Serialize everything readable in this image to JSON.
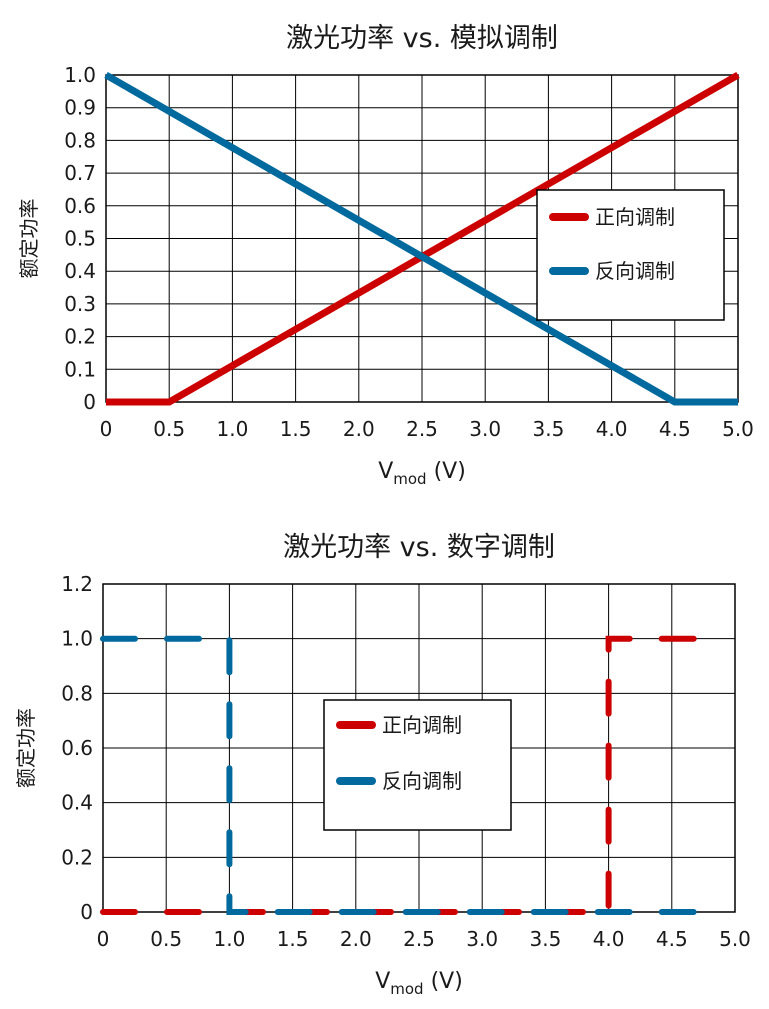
{
  "colors": {
    "forward": "#cc0000",
    "reverse": "#00699d",
    "grid": "#000000"
  },
  "chart_data": [
    {
      "type": "line",
      "title": "激光功率 vs. 模拟调制",
      "xlabel_main": "V",
      "xlabel_sub": "mod",
      "xlabel_unit": " (V)",
      "ylabel": "额定功率",
      "xlim": [
        0,
        5
      ],
      "ylim": [
        0,
        1
      ],
      "xticks": [
        0,
        0.5,
        1,
        1.5,
        2,
        2.5,
        3,
        3.5,
        4,
        4.5,
        5
      ],
      "xtick_labels": [
        "0",
        "0.5",
        "1.0",
        "1.5",
        "2.0",
        "2.5",
        "3.0",
        "3.5",
        "4.0",
        "4.5",
        "5.0"
      ],
      "yticks": [
        0,
        0.1,
        0.2,
        0.3,
        0.4,
        0.5,
        0.6,
        0.7,
        0.8,
        0.9,
        1.0
      ],
      "ytick_labels": [
        "0",
        "0.1",
        "0.2",
        "0.3",
        "0.4",
        "0.5",
        "0.6",
        "0.7",
        "0.8",
        "0.9",
        "1.0"
      ],
      "grid": true,
      "legend_position": "right",
      "series": [
        {
          "name": "正向调制",
          "color": "forward",
          "dashed": false,
          "x": [
            0,
            0.5,
            5.0
          ],
          "y": [
            0,
            0,
            1.0
          ]
        },
        {
          "name": "反向调制",
          "color": "reverse",
          "dashed": false,
          "x": [
            0,
            4.5,
            5.0
          ],
          "y": [
            1.0,
            0,
            0
          ]
        }
      ]
    },
    {
      "type": "line",
      "title": "激光功率 vs. 数字调制",
      "xlabel_main": "V",
      "xlabel_sub": "mod",
      "xlabel_unit": " (V)",
      "ylabel": "额定功率",
      "xlim": [
        0,
        5
      ],
      "ylim": [
        0,
        1.2
      ],
      "xticks": [
        0,
        0.5,
        1,
        1.5,
        2,
        2.5,
        3,
        3.5,
        4,
        4.5,
        5
      ],
      "xtick_labels": [
        "0",
        "0.5",
        "1.0",
        "1.5",
        "2.0",
        "2.5",
        "3.0",
        "3.5",
        "4.0",
        "4.5",
        "5.0"
      ],
      "yticks": [
        0,
        0.2,
        0.4,
        0.6,
        0.8,
        1.0,
        1.2
      ],
      "ytick_labels": [
        "0",
        "0.2",
        "0.4",
        "0.6",
        "0.8",
        "1.0",
        "1.2"
      ],
      "grid": true,
      "legend_position": "center",
      "series": [
        {
          "name": "正向调制",
          "color": "forward",
          "dashed": true,
          "x": [
            0,
            4.0,
            4.0,
            4.75
          ],
          "y": [
            0,
            0,
            1.0,
            1.0
          ]
        },
        {
          "name": "反向调制",
          "color": "reverse",
          "dashed": true,
          "x": [
            0,
            1.0,
            1.0,
            4.75
          ],
          "y": [
            1.0,
            1.0,
            0,
            0
          ]
        }
      ]
    }
  ]
}
